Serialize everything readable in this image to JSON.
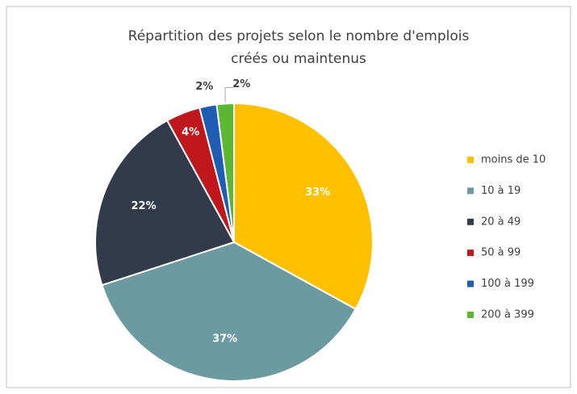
{
  "chart_data": {
    "type": "pie",
    "title": "Répartition des projets selon le nombre d'emplois",
    "subtitle": "créés ou maintenus",
    "categories": [
      "moins de 10",
      "10 à 19",
      "20 à 49",
      "50 à 99",
      "100 à 199",
      "200 à 399"
    ],
    "values": [
      33,
      37,
      22,
      4,
      2,
      2
    ],
    "value_labels": [
      "33%",
      "37%",
      "22%",
      "4%",
      "2%",
      "2%"
    ],
    "colors": [
      "#ffc000",
      "#6b9aa0",
      "#333a4b",
      "#c0171d",
      "#1f5db5",
      "#5bb830"
    ],
    "legend": "right"
  }
}
